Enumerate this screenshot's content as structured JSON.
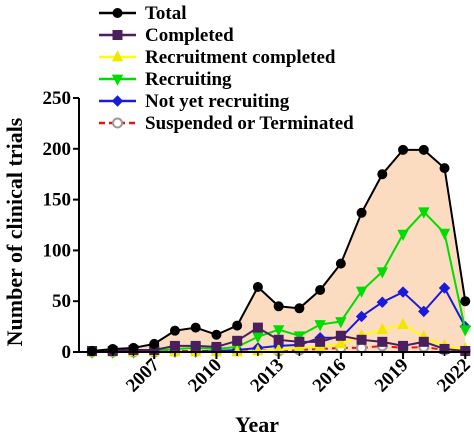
{
  "chart_data": {
    "type": "line",
    "title": "",
    "xlabel": "Year",
    "ylabel": "Number of clinical trials",
    "ylim": [
      0,
      250
    ],
    "xlim": [
      2004,
      2023
    ],
    "yticks": [
      "0",
      "50",
      "100",
      "150",
      "200",
      "250"
    ],
    "xticks": [
      "2007",
      "2010",
      "2013",
      "2016",
      "2019",
      "2022"
    ],
    "x": [
      2004,
      2005,
      2006,
      2007,
      2008,
      2009,
      2010,
      2011,
      2012,
      2013,
      2014,
      2015,
      2016,
      2017,
      2018,
      2019,
      2020,
      2021,
      2022,
      2023
    ],
    "area_fill_color": "#fbdcc0",
    "legend_position": "top-left",
    "series": [
      {
        "name": "Total",
        "color": "#000000",
        "marker": "circle",
        "values": [
          1,
          3,
          4,
          8,
          21,
          24,
          17,
          26,
          64,
          45,
          43,
          61,
          87,
          137,
          175,
          199,
          199,
          181,
          50,
          null
        ]
      },
      {
        "name": "Completed",
        "color": "#4b1e5e",
        "marker": "square",
        "values": [
          1,
          1,
          2,
          2,
          6,
          6,
          5,
          11,
          24,
          12,
          10,
          10,
          16,
          12,
          10,
          6,
          10,
          3,
          1,
          null
        ]
      },
      {
        "name": "Recruitment completed",
        "color": "#ffff00",
        "marker": "triangle-up",
        "values": [
          0,
          0,
          0,
          0,
          0,
          0,
          0,
          0,
          1,
          2,
          4,
          5,
          8,
          16,
          22,
          27,
          15,
          6,
          3,
          null
        ]
      },
      {
        "name": "Recruiting",
        "color": "#00dd00",
        "marker": "triangle-down",
        "values": [
          0,
          0,
          0,
          1,
          3,
          4,
          3,
          5,
          15,
          22,
          16,
          27,
          30,
          60,
          79,
          116,
          138,
          117,
          22,
          null
        ]
      },
      {
        "name": "Not yet recruiting",
        "color": "#1a1adb",
        "marker": "diamond",
        "values": [
          0,
          0,
          0,
          0,
          0,
          0,
          1,
          2,
          4,
          6,
          7,
          14,
          14,
          35,
          49,
          59,
          40,
          63,
          25,
          null
        ]
      },
      {
        "name": "Suspended or Terminated",
        "color": "#ee1111",
        "marker": "circle-open",
        "values": [
          0,
          0,
          0,
          0,
          1,
          1,
          1,
          1,
          2,
          1,
          2,
          3,
          4,
          4,
          6,
          4,
          5,
          2,
          1,
          null
        ]
      }
    ]
  }
}
